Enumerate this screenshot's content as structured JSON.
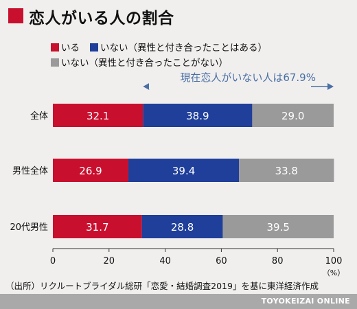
{
  "title": "恋人がいる人の割合",
  "source": "（出所）リクルートブライダル総研「恋愛・結婚調査2019」を基に東洋経済作成",
  "brand": "TOYOKEIZAI ONLINE",
  "colors": {
    "accent": "#c8102e",
    "has_partner": "#c8102e",
    "none_before": "#1f3f9a",
    "none_never": "#9a9a9a",
    "annotation": "#4a6fa5",
    "footer": "#a9a9a9"
  },
  "chart_data": {
    "type": "bar",
    "orientation": "horizontal",
    "stacked": true,
    "title": "恋人がいる人の割合",
    "categories": [
      "全体",
      "男性全体",
      "20代男性"
    ],
    "series": [
      {
        "name": "いる",
        "values": [
          32.1,
          26.9,
          31.7
        ]
      },
      {
        "name": "いない（異性と付き合ったことはある）",
        "values": [
          38.9,
          39.4,
          28.8
        ]
      },
      {
        "name": "いない（異性と付き合ったことがない）",
        "values": [
          29.0,
          33.8,
          39.5
        ]
      }
    ],
    "data_labels": [
      [
        "32.1",
        "26.9",
        "31.7"
      ],
      [
        "38.9",
        "39.4",
        "28.8"
      ],
      [
        "29.0",
        "33.8",
        "39.5"
      ]
    ],
    "xlim": [
      0,
      100
    ],
    "xticks": [
      0,
      20,
      40,
      60,
      80,
      100
    ],
    "xtick_labels": [
      "0",
      "20",
      "40",
      "60",
      "80",
      "100"
    ],
    "x_unit": "（%）",
    "legend_position": "top",
    "grid": false,
    "annotation": {
      "text": "現在恋人がいない人は67.9%",
      "from": 32.1,
      "to": 100
    }
  }
}
